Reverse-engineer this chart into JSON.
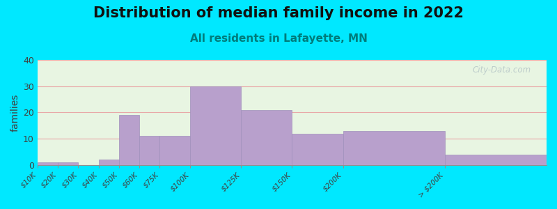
{
  "title": "Distribution of median family income in 2022",
  "subtitle": "All residents in Lafayette, MN",
  "ylabel": "families",
  "categories": [
    "$10K",
    "$20K",
    "$30K",
    "$40K",
    "$50K",
    "$60K",
    "$75K",
    "$100K",
    "$125K",
    "$150K",
    "$200K",
    "> $200K"
  ],
  "values": [
    1,
    1,
    0,
    2,
    19,
    11,
    11,
    30,
    21,
    12,
    13,
    4
  ],
  "bin_edges": [
    0,
    10,
    20,
    30,
    40,
    50,
    60,
    75,
    100,
    125,
    150,
    200,
    250
  ],
  "bar_color": "#b8a0cc",
  "bar_edge_color": "#a090bc",
  "background_outer": "#00e8ff",
  "background_plot": "#e8f5e2",
  "ylim": [
    0,
    40
  ],
  "yticks": [
    0,
    10,
    20,
    30,
    40
  ],
  "grid_color": "#e8a8a8",
  "title_fontsize": 15,
  "subtitle_fontsize": 11,
  "subtitle_color": "#007b7b",
  "ylabel_fontsize": 10,
  "watermark": "City-Data.com",
  "watermark_color": "#b8c8c8"
}
